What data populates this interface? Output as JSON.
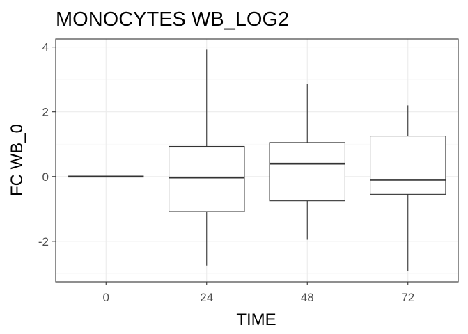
{
  "chart_data": {
    "type": "boxplot",
    "title": "MONOCYTES WB_LOG2",
    "xlabel": "TIME",
    "ylabel": "FC WB_0",
    "categories": [
      "0",
      "24",
      "48",
      "72"
    ],
    "ylim": [
      -3.25,
      4.25
    ],
    "yticks": [
      -2,
      0,
      2,
      4
    ],
    "grid": true,
    "colors": {
      "box_stroke": "#333333",
      "grid_major": "#ebebeb",
      "grid_minor": "#f5f5f5",
      "panel_border": "#333333"
    },
    "boxes": [
      {
        "category": "0",
        "min": 0,
        "q1": 0,
        "median": 0,
        "q3": 0,
        "max": 0
      },
      {
        "category": "24",
        "min": -2.75,
        "q1": -1.08,
        "median": -0.03,
        "q3": 0.93,
        "max": 3.92
      },
      {
        "category": "48",
        "min": -1.95,
        "q1": -0.75,
        "median": 0.4,
        "q3": 1.05,
        "max": 2.87
      },
      {
        "category": "72",
        "min": -2.92,
        "q1": -0.55,
        "median": -0.1,
        "q3": 1.25,
        "max": 2.2
      }
    ]
  }
}
